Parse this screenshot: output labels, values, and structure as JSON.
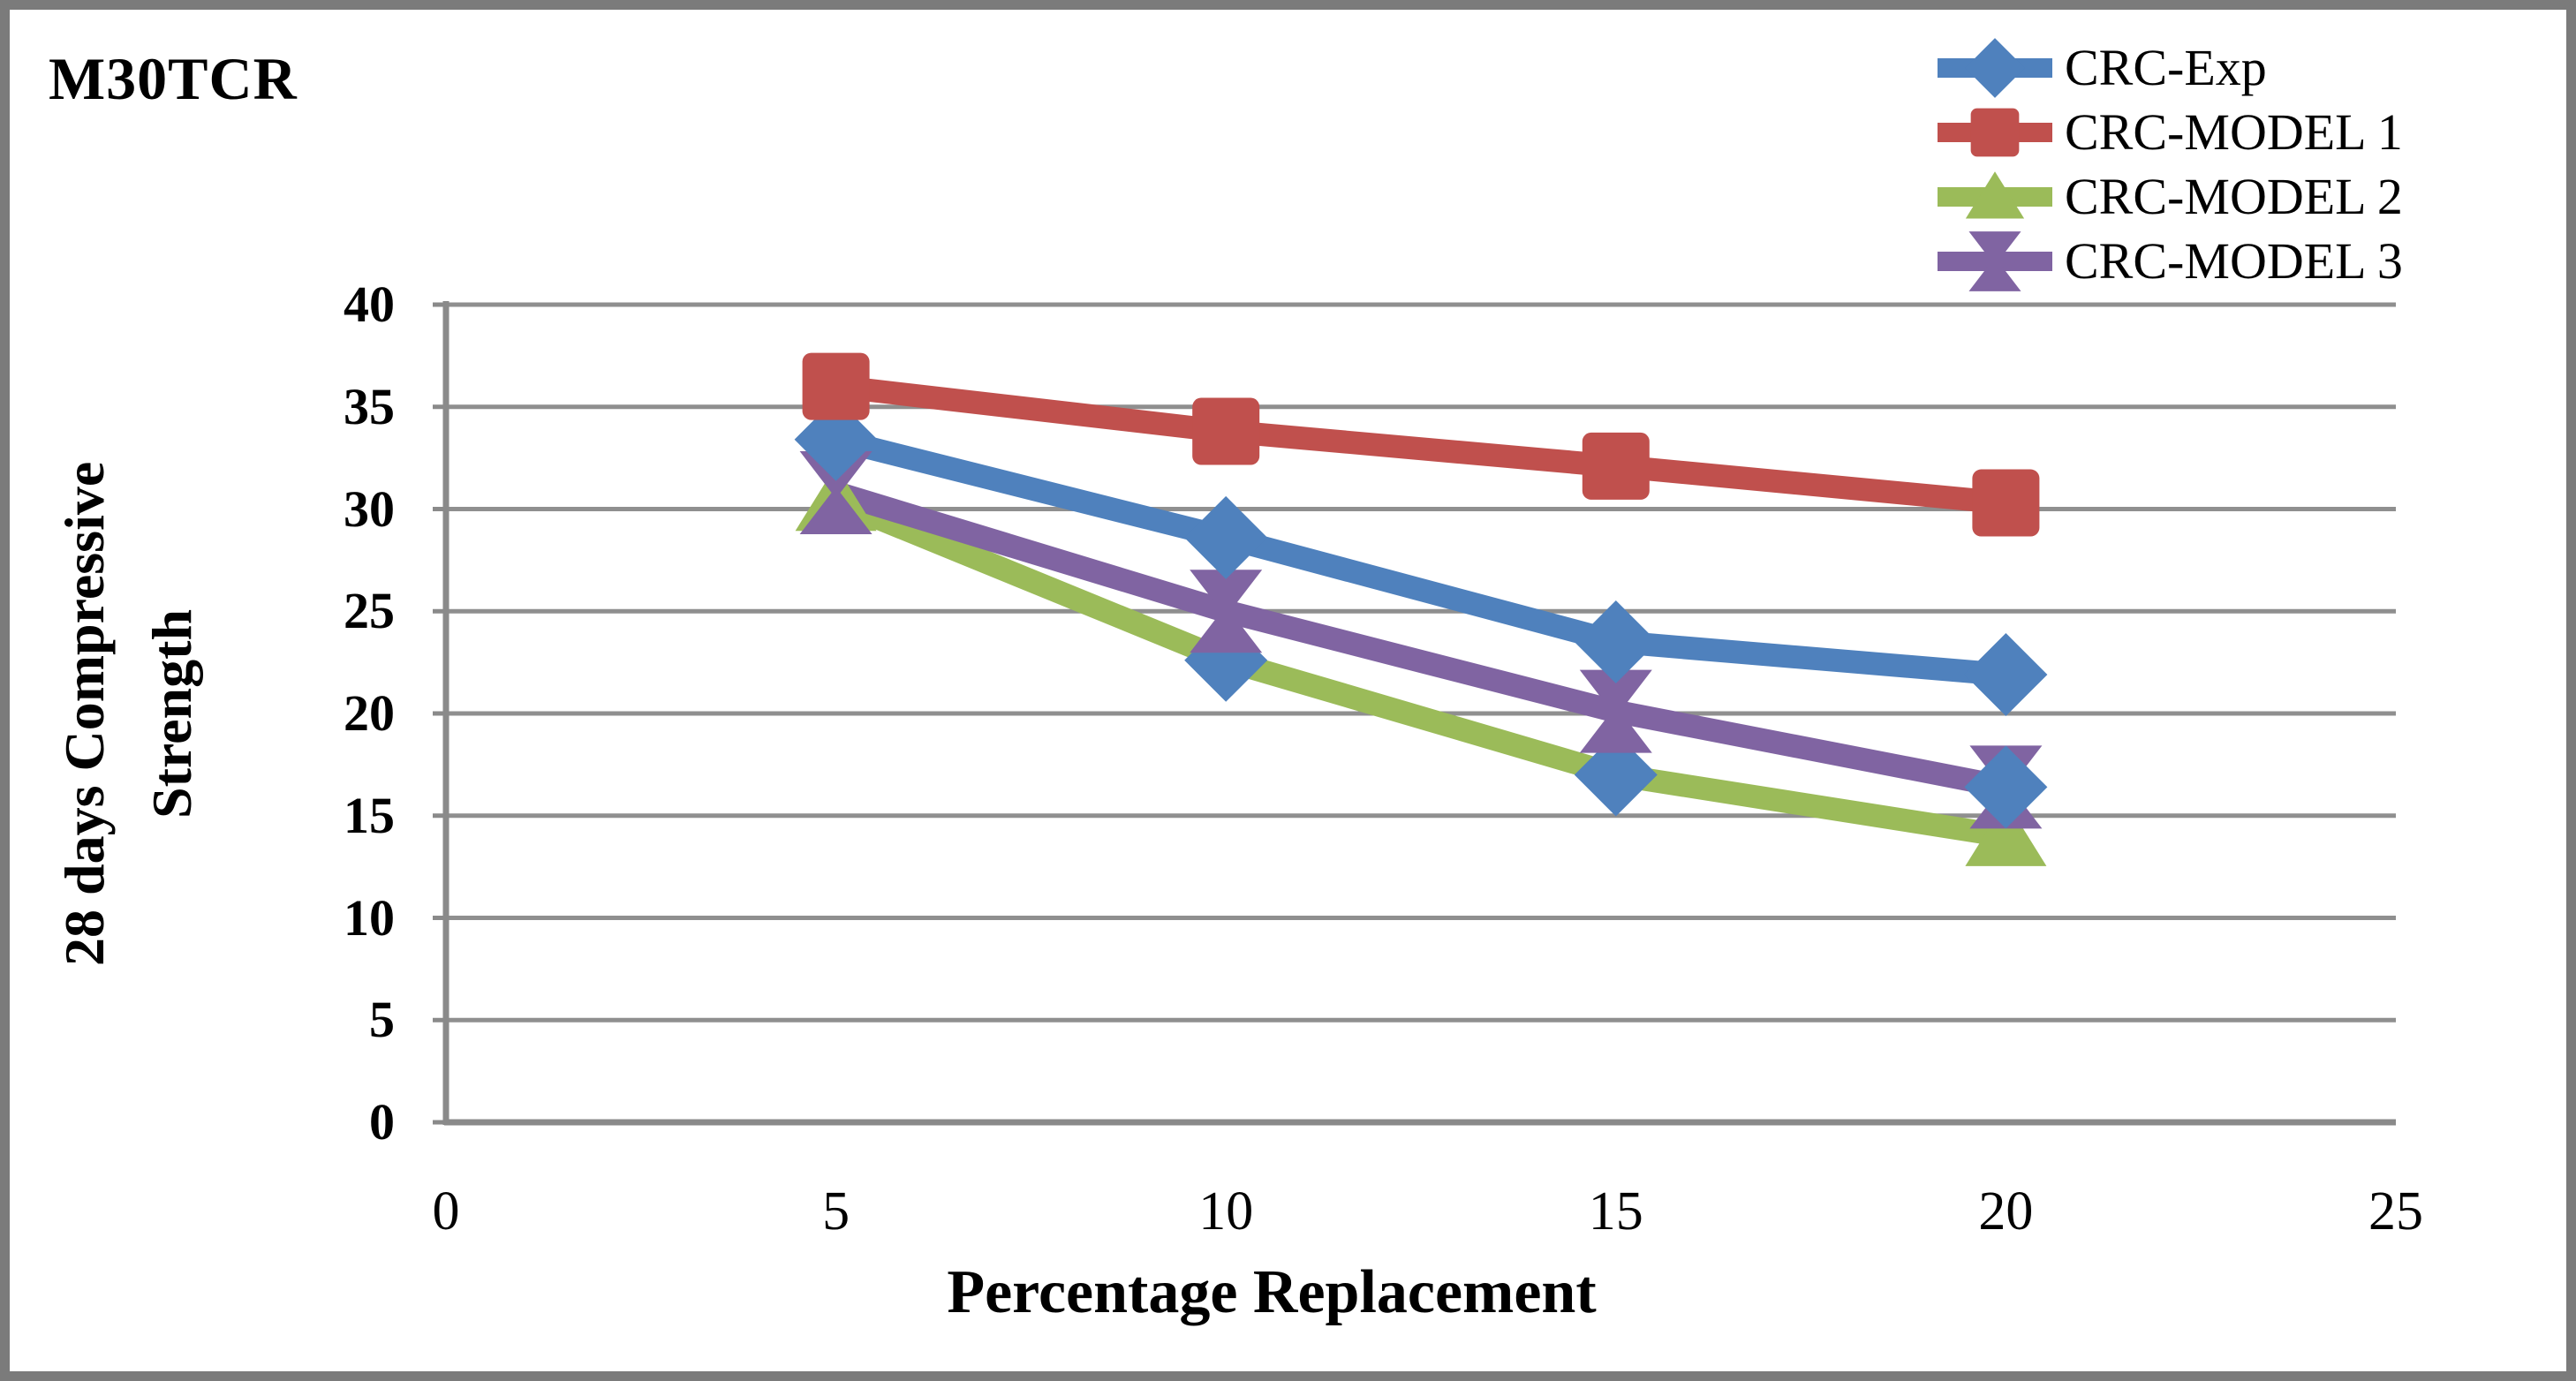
{
  "chart": {
    "background": "#FFFFFF",
    "frame_border_color": "#7B7B7B",
    "text_color": "#000000"
  },
  "chart_data": {
    "type": "line",
    "title": "M30TCR",
    "xlabel": "Percentage Replacement",
    "ylabel": "28 days Compressive Strength",
    "ylabel_lines": [
      "28 days Compressive",
      "Strength"
    ],
    "x": [
      5,
      10,
      15,
      20
    ],
    "x_ticks": [
      0,
      5,
      10,
      15,
      20,
      25
    ],
    "y_ticks": [
      0,
      5,
      10,
      15,
      20,
      25,
      30,
      35,
      40
    ],
    "xlim": [
      0,
      25
    ],
    "ylim": [
      0,
      40
    ],
    "grid": "horizontal-major",
    "gridline_color": "#8F8F8F",
    "axis_color": "#8A8A8A",
    "legend_position": "top-right",
    "series": [
      {
        "name": "CRC-Exp",
        "color": "#4F81BD",
        "marker": "diamond",
        "values": [
          33.4,
          28.6,
          23.5,
          21.9
        ],
        "marker_visible": [
          true,
          true,
          true,
          true
        ]
      },
      {
        "name": "CRC-MODEL 1",
        "color": "#C0504D",
        "marker": "square",
        "values": [
          36.0,
          33.8,
          32.1,
          30.3
        ],
        "marker_visible": [
          true,
          true,
          true,
          true
        ]
      },
      {
        "name": "CRC-MODEL 2",
        "color": "#9BBB59",
        "marker": "triangle",
        "values": [
          30.4,
          22.6,
          17.0,
          14.0
        ],
        "marker_visible": [
          true,
          false,
          false,
          true
        ]
      },
      {
        "name": "CRC-MODEL 3",
        "color": "#8064A2",
        "marker": "x",
        "values": [
          30.8,
          25.0,
          20.1,
          16.4
        ],
        "marker_visible": [
          true,
          true,
          true,
          true
        ]
      }
    ],
    "extra_markers": [
      {
        "x": 10,
        "y": 22.6,
        "marker": "diamond",
        "color": "#4F81BD",
        "layer": "under"
      },
      {
        "x": 15,
        "y": 17.0,
        "marker": "diamond",
        "color": "#4F81BD",
        "layer": "under"
      },
      {
        "x": 20,
        "y": 16.4,
        "marker": "diamond",
        "color": "#4F81BD",
        "layer": "over"
      }
    ]
  }
}
